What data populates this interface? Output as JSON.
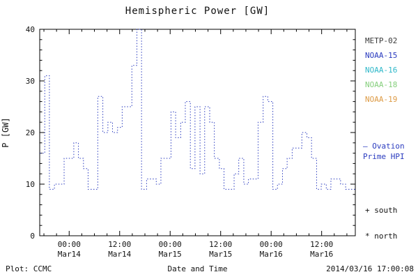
{
  "title": "Hemispheric Power [GW]",
  "footer": {
    "left": "Plot: CCMC",
    "center": "Date and Time",
    "right": "2014/03/16 17:00:08"
  },
  "chart_data": {
    "type": "line",
    "style": "dotted-step",
    "title": "Hemispheric Power [GW]",
    "xlabel": "Date and Time",
    "ylabel": "P [GW]",
    "ylim": [
      0,
      40
    ],
    "yticks": [
      0,
      10,
      20,
      30,
      40
    ],
    "xlim_hours": [
      0,
      75
    ],
    "xticks": [
      {
        "hour": 7,
        "time": "00:00",
        "date": "Mar14"
      },
      {
        "hour": 19,
        "time": "12:00",
        "date": "Mar14"
      },
      {
        "hour": 31,
        "time": "00:00",
        "date": "Mar15"
      },
      {
        "hour": 43,
        "time": "12:00",
        "date": "Mar15"
      },
      {
        "hour": 55,
        "time": "00:00",
        "date": "Mar16"
      },
      {
        "hour": 67,
        "time": "12:00",
        "date": "Mar16"
      }
    ],
    "line_color": "#2a3bbf",
    "grid": false,
    "legend_position": "right-outside",
    "series": [
      {
        "name": "Ovation Prime HPI",
        "x_hours": [
          0.0,
          1.2,
          2.3,
          3.5,
          4.6,
          5.8,
          6.9,
          8.1,
          9.2,
          10.4,
          11.5,
          12.7,
          13.8,
          15.0,
          16.2,
          17.3,
          18.5,
          19.6,
          20.8,
          21.9,
          23.1,
          24.2,
          25.4,
          26.5,
          27.7,
          28.8,
          30.0,
          31.2,
          32.3,
          33.5,
          34.6,
          35.8,
          36.9,
          38.1,
          39.2,
          40.4,
          41.5,
          42.7,
          43.8,
          45.0,
          46.2,
          47.3,
          48.5,
          49.6,
          50.8,
          51.9,
          53.1,
          54.2,
          55.4,
          56.5,
          57.7,
          58.8,
          60.0,
          61.2,
          62.3,
          63.5,
          64.6,
          65.8,
          66.9,
          68.1,
          69.2,
          70.4,
          71.5,
          72.7,
          73.8
        ],
        "values": [
          16,
          31,
          9,
          10,
          10,
          15,
          15,
          18,
          15,
          13,
          9,
          9,
          27,
          20,
          22,
          20,
          21,
          25,
          25,
          33,
          40,
          9,
          11,
          11,
          10,
          15,
          15,
          24,
          19,
          22,
          26,
          13,
          25,
          12,
          25,
          22,
          15,
          13,
          9,
          9,
          12,
          15,
          10,
          11,
          11,
          22,
          27,
          26,
          9,
          10,
          13,
          15,
          17,
          17,
          20,
          19,
          15,
          9,
          10,
          9,
          11,
          11,
          10,
          9,
          9
        ]
      }
    ],
    "legend": [
      {
        "label": "METP-02",
        "color": "#3a3a3a"
      },
      {
        "label": "NOAA-15",
        "color": "#2a3bbf"
      },
      {
        "label": "NOAA-16",
        "color": "#2fb8c9"
      },
      {
        "label": "NOAA-18",
        "color": "#86cf7d"
      },
      {
        "label": "NOAA-19",
        "color": "#dd9a44"
      }
    ],
    "annotations": {
      "ovation_line1": "— Ovation",
      "ovation_line2": "Prime HPI",
      "ovation_color": "#2a3bbf",
      "south": "+ south",
      "north": "* north"
    }
  }
}
